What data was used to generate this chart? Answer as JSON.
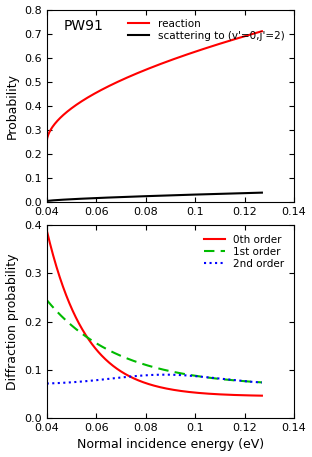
{
  "top_panel": {
    "title": "PW91",
    "ylabel": "Probability",
    "ylim": [
      0,
      0.8
    ],
    "yticks": [
      0,
      0.1,
      0.2,
      0.3,
      0.4,
      0.5,
      0.6,
      0.7,
      0.8
    ],
    "xlim": [
      0.04,
      0.14
    ],
    "xticks": [
      0.04,
      0.06,
      0.08,
      0.1,
      0.12,
      0.14
    ],
    "reaction_color": "#ff0000",
    "scattering_color": "#000000",
    "legend_reaction": "reaction",
    "legend_scattering": "scattering to (v'=0,j'=2)"
  },
  "bottom_panel": {
    "ylabel": "Diffraction probability",
    "xlabel": "Normal incidence energy (eV)",
    "ylim": [
      0,
      0.4
    ],
    "yticks": [
      0,
      0.1,
      0.2,
      0.3,
      0.4
    ],
    "xlim": [
      0.04,
      0.14
    ],
    "xticks": [
      0.04,
      0.06,
      0.08,
      0.1,
      0.12,
      0.14
    ],
    "order0_color": "#ff0000",
    "order1_color": "#00bb00",
    "order2_color": "#0000ff",
    "legend_0th": "0th order",
    "legend_1st": "1st order",
    "legend_2nd": "2nd order"
  },
  "figsize": [
    3.12,
    4.57
  ],
  "dpi": 100
}
